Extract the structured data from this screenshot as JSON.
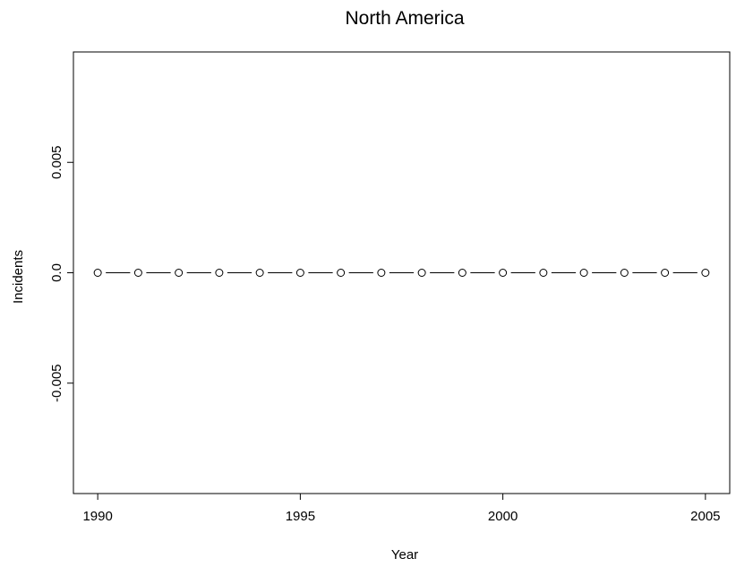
{
  "chart_data": {
    "type": "line",
    "title": "North America",
    "xlabel": "Year",
    "ylabel": "Incidents",
    "x": [
      1990,
      1991,
      1992,
      1993,
      1994,
      1995,
      1996,
      1997,
      1998,
      1999,
      2000,
      2001,
      2002,
      2003,
      2004,
      2005
    ],
    "series": [
      {
        "values": [
          0,
          0,
          0,
          0,
          0,
          0,
          0,
          0,
          0,
          0,
          0,
          0,
          0,
          0,
          0,
          0
        ]
      }
    ],
    "xlim": [
      1989.4,
      2005.6
    ],
    "ylim": [
      -0.01,
      0.01
    ],
    "x_ticks": [
      1990,
      1995,
      2000,
      2005
    ],
    "x_tick_labels": [
      "1990",
      "1995",
      "2000",
      "2005"
    ],
    "y_ticks": [
      -0.005,
      0,
      0.005
    ],
    "y_tick_labels": [
      "-0.005",
      "0.0",
      "0.005"
    ],
    "marker": "open-circle",
    "line_style": "solid",
    "line_color": "#000000",
    "grid": false,
    "legend": "none"
  }
}
